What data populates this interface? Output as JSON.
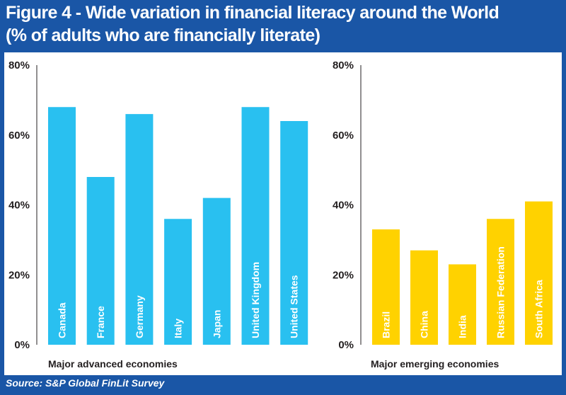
{
  "title": {
    "line1": "Figure 4 - Wide variation in financial literacy around the World",
    "line2": "(% of adults who are financially literate)"
  },
  "source": "Source: S&P Global FinLit Survey",
  "colors": {
    "frame": "#1a56a6",
    "advanced_bar": "#29c0f0",
    "emerging_bar": "#ffd200",
    "axis_text": "#231f20",
    "bar_label": "#ffffff"
  },
  "chart_data": [
    {
      "type": "bar",
      "xlabel": "Major advanced economies",
      "categories": [
        "Canada",
        "France",
        "Germany",
        "Italy",
        "Japan",
        "United Kingdom",
        "United States"
      ],
      "values": [
        68,
        48,
        66,
        36,
        42,
        68,
        64
      ],
      "ylim": [
        0,
        80
      ],
      "yticks": [
        0,
        20,
        40,
        60,
        80
      ],
      "ytick_labels": [
        "0%",
        "20%",
        "40%",
        "60%",
        "80%"
      ],
      "grid": false,
      "color": "#29c0f0"
    },
    {
      "type": "bar",
      "xlabel": "Major emerging economies",
      "categories": [
        "Brazil",
        "China",
        "India",
        "Russian Federation",
        "South Africa"
      ],
      "values": [
        33,
        27,
        23,
        36,
        41
      ],
      "ylim": [
        0,
        80
      ],
      "yticks": [
        0,
        20,
        40,
        60,
        80
      ],
      "ytick_labels": [
        "0%",
        "20%",
        "40%",
        "60%",
        "80%"
      ],
      "grid": false,
      "color": "#ffd200"
    }
  ]
}
